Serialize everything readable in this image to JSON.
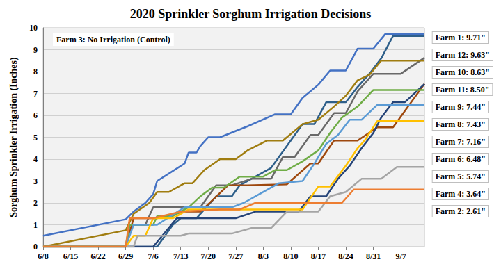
{
  "chart_data": {
    "type": "line",
    "title": "2020 Sprinkler Sorghum Irrigation Decisions",
    "ylabel": "Sorghum Sprinkler Irrigation (Inches)",
    "annotation": "Farm 3: No Irrigation (Control)",
    "xlim": [
      160,
      257
    ],
    "xticks": [
      {
        "value": 160,
        "label": "6/8"
      },
      {
        "value": 167,
        "label": "6/15"
      },
      {
        "value": 174,
        "label": "6/22"
      },
      {
        "value": 181,
        "label": "6/29"
      },
      {
        "value": 188,
        "label": "7/6"
      },
      {
        "value": 195,
        "label": "7/13"
      },
      {
        "value": 202,
        "label": "7/20"
      },
      {
        "value": 209,
        "label": "7/27"
      },
      {
        "value": 216,
        "label": "8/3"
      },
      {
        "value": 223,
        "label": "8/10"
      },
      {
        "value": 230,
        "label": "8/17"
      },
      {
        "value": 237,
        "label": "8/24"
      },
      {
        "value": 244,
        "label": "8/31"
      },
      {
        "value": 251,
        "label": "9/7"
      }
    ],
    "ylim": [
      0,
      10
    ],
    "yticks": [
      0,
      1,
      2,
      3,
      4,
      5,
      6,
      7,
      8,
      9,
      10
    ],
    "grid": true,
    "legend": "right",
    "series": [
      {
        "name": "Farm 1: 9.71\"",
        "color": "#4472C4",
        "x": [
          160,
          181,
          183,
          186,
          188,
          189,
          196,
          197,
          199,
          200,
          202,
          205,
          212,
          219,
          223,
          226,
          230,
          233,
          237,
          240,
          244,
          247,
          257
        ],
        "values": [
          0.5,
          1.25,
          1.6,
          2.0,
          2.4,
          3.0,
          3.8,
          4.3,
          4.3,
          4.6,
          5.0,
          5.0,
          5.5,
          6.05,
          6.05,
          6.8,
          7.4,
          8.05,
          8.05,
          9.05,
          9.05,
          9.71,
          9.71
        ]
      },
      {
        "name": "Farm 12: 9.63\"",
        "color": "#2E5F8A",
        "x": [
          160,
          189,
          193,
          195,
          199,
          204,
          208,
          210,
          214,
          218,
          222,
          226,
          229,
          232,
          237,
          240,
          243,
          246,
          249,
          257
        ],
        "values": [
          0,
          0,
          1.0,
          1.3,
          1.3,
          2.3,
          2.3,
          2.8,
          3.2,
          3.6,
          4.6,
          5.6,
          5.6,
          6.6,
          6.6,
          7.3,
          7.9,
          8.6,
          9.63,
          9.63
        ]
      },
      {
        "name": "Farm 10: 8.63\"",
        "color": "#696969",
        "x": [
          160,
          181,
          182,
          186,
          188,
          200,
          204,
          208,
          213,
          218,
          221,
          224,
          228,
          230,
          234,
          237,
          240,
          244,
          251,
          257
        ],
        "values": [
          0,
          0,
          1.0,
          1.0,
          1.8,
          1.8,
          2.8,
          2.8,
          3.1,
          3.1,
          4.1,
          4.1,
          5.1,
          5.1,
          6.1,
          6.1,
          7.1,
          7.9,
          7.9,
          8.63
        ]
      },
      {
        "name": "Farm 11: 8.50\"",
        "color": "#A07D10",
        "x": [
          160,
          181,
          183,
          187,
          189,
          192,
          196,
          198,
          201,
          205,
          209,
          212,
          217,
          221,
          226,
          230,
          234,
          237,
          240,
          243,
          246,
          257
        ],
        "values": [
          0,
          0.75,
          1.5,
          2.0,
          2.5,
          2.5,
          2.9,
          2.9,
          3.5,
          4.0,
          4.0,
          4.4,
          4.85,
          4.85,
          5.6,
          5.8,
          6.4,
          6.9,
          7.6,
          7.85,
          8.5,
          8.5
        ]
      },
      {
        "name": "Farm 9: 7.44\"",
        "color": "#9E480E",
        "x": [
          160,
          181,
          183,
          189,
          196,
          200,
          207,
          212,
          222,
          228,
          230,
          234,
          240,
          245,
          249,
          257
        ],
        "values": [
          0,
          0,
          1.3,
          1.3,
          1.6,
          1.6,
          2.8,
          2.8,
          2.85,
          3.8,
          3.8,
          4.85,
          4.85,
          5.45,
          5.45,
          7.44
        ]
      },
      {
        "name": "Farm 8: 7.43\"",
        "color": "#264478",
        "x": [
          160,
          188,
          194,
          209,
          214,
          225,
          228,
          232,
          235,
          238,
          241,
          244,
          246,
          249,
          252,
          257
        ],
        "values": [
          0,
          0,
          1.3,
          1.3,
          1.6,
          1.6,
          2.3,
          2.3,
          3.1,
          3.7,
          4.5,
          5.2,
          5.9,
          6.6,
          6.6,
          7.43
        ]
      },
      {
        "name": "Farm 7: 7.16\"",
        "color": "#70AD47",
        "x": [
          160,
          181,
          182,
          188,
          189,
          193,
          197,
          200,
          203,
          206,
          210,
          216,
          219,
          222,
          226,
          230,
          233,
          236,
          240,
          244,
          257
        ],
        "values": [
          0,
          0,
          1.0,
          1.0,
          1.4,
          1.4,
          1.8,
          2.3,
          2.7,
          2.7,
          3.2,
          3.2,
          3.5,
          3.5,
          3.9,
          4.4,
          5.2,
          5.9,
          6.4,
          7.16,
          7.16
        ]
      },
      {
        "name": "Farm 6: 6.48\"",
        "color": "#5B9BD5",
        "x": [
          160,
          181,
          183,
          189,
          196,
          208,
          211,
          215,
          220,
          226,
          229,
          232,
          235,
          238,
          241,
          245,
          257
        ],
        "values": [
          0,
          0,
          1.0,
          1.0,
          1.8,
          1.8,
          2.0,
          2.4,
          2.9,
          3.0,
          3.8,
          4.7,
          5.1,
          5.8,
          5.8,
          6.48,
          6.48
        ]
      },
      {
        "name": "Farm 5: 5.74\"",
        "color": "#FFC000",
        "x": [
          160,
          181,
          183,
          186,
          188,
          193,
          197,
          226,
          230,
          233,
          237,
          240,
          242,
          245,
          257
        ],
        "values": [
          0,
          0,
          0.5,
          0.5,
          1.3,
          1.3,
          1.7,
          1.7,
          2.75,
          2.75,
          3.7,
          4.5,
          4.9,
          5.74,
          5.74
        ]
      },
      {
        "name": "Farm 4: 3.64\"",
        "color": "#A5A5A5",
        "x": [
          160,
          183,
          184,
          195,
          197,
          208,
          213,
          218,
          222,
          230,
          233,
          237,
          241,
          246,
          250,
          257
        ],
        "values": [
          0,
          0,
          0.5,
          0.5,
          0.6,
          0.6,
          0.85,
          0.85,
          1.6,
          1.6,
          2.3,
          2.5,
          3.1,
          3.1,
          3.64,
          3.64
        ]
      },
      {
        "name": "Farm 2: 2.61\"",
        "color": "#ED7D31",
        "x": [
          160,
          181,
          182,
          188,
          195,
          205,
          210,
          214,
          236,
          239,
          257
        ],
        "values": [
          0,
          0,
          1.3,
          1.3,
          1.6,
          1.7,
          1.7,
          2.0,
          2.0,
          2.61,
          2.61
        ]
      }
    ]
  }
}
